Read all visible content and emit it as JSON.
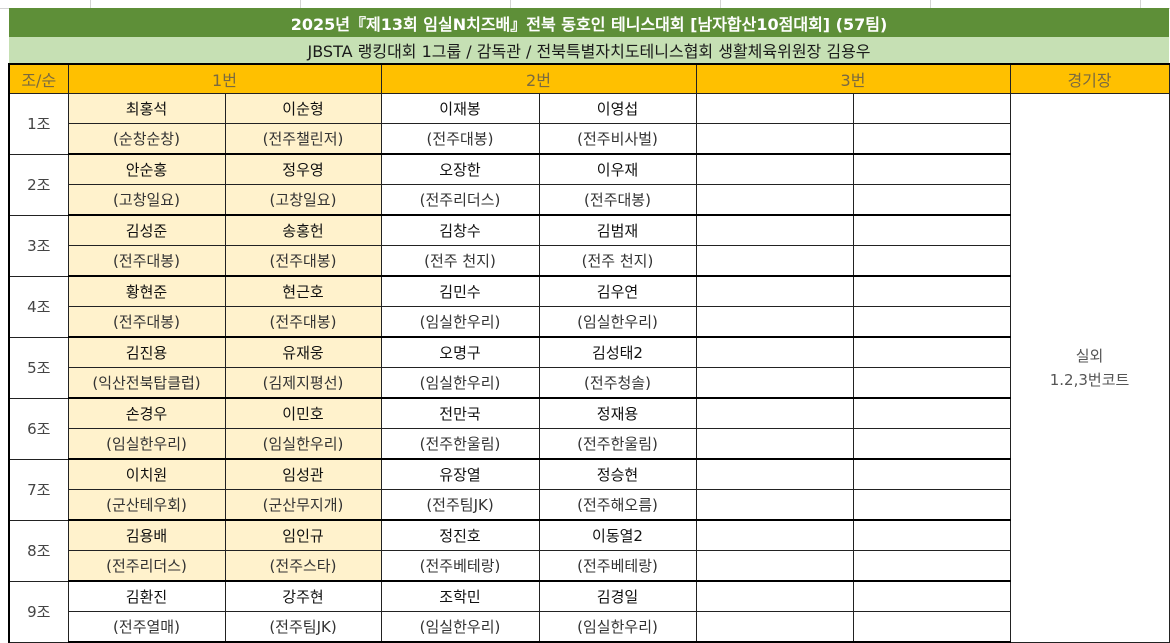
{
  "title": "2025년『제13회 임실N치즈배』전북 동호인 테니스대회 [남자합산10점대회] (57팀)",
  "subtitle": "JBSTA 랭킹대회 1그룹 / 감독관 / 전북특별자치도테니스협회 생활체육위원장 김용우",
  "headers": {
    "group": "조/순",
    "slot1": "1번",
    "slot2": "2번",
    "slot3": "3번",
    "venue": "경기장"
  },
  "venue": {
    "line1": "실외",
    "line2": "1.2,3번코트"
  },
  "colors": {
    "title_bg": "#5e8f38",
    "subtitle_bg": "#c6e0b4",
    "header_bg": "#ffc000",
    "slot1_highlight": "#fff2cc"
  },
  "groups": [
    {
      "label": "1조",
      "highlight": true,
      "names": [
        "최홍석",
        "이순형",
        "이재봉",
        "이영섭"
      ],
      "clubs": [
        "(순창순창)",
        "(전주챌린저)",
        "(전주대봉)",
        "(전주비사벌)"
      ]
    },
    {
      "label": "2조",
      "highlight": true,
      "names": [
        "안순홍",
        "정우영",
        "오장한",
        "이우재"
      ],
      "clubs": [
        "(고창일요)",
        "(고창일요)",
        "(전주리더스)",
        "(전주대봉)"
      ]
    },
    {
      "label": "3조",
      "highlight": true,
      "names": [
        "김성준",
        "송홍헌",
        "김창수",
        "김범재"
      ],
      "clubs": [
        "(전주대봉)",
        "(전주대봉)",
        "(전주 천지)",
        "(전주 천지)"
      ]
    },
    {
      "label": "4조",
      "highlight": true,
      "names": [
        "황현준",
        "현근호",
        "김민수",
        "김우연"
      ],
      "clubs": [
        "(전주대봉)",
        "(전주대봉)",
        "(임실한우리)",
        "(임실한우리)"
      ]
    },
    {
      "label": "5조",
      "highlight": true,
      "names": [
        "김진용",
        "유재웅",
        "오명구",
        "김성태2"
      ],
      "clubs": [
        "(익산전북탑클럽)",
        "(김제지평선)",
        "(임실한우리)",
        "(전주청솔)"
      ]
    },
    {
      "label": "6조",
      "highlight": true,
      "names": [
        "손경우",
        "이민호",
        "전만국",
        "정재용"
      ],
      "clubs": [
        "(임실한우리)",
        "(임실한우리)",
        "(전주한울림)",
        "(전주한울림)"
      ]
    },
    {
      "label": "7조",
      "highlight": true,
      "names": [
        "이치원",
        "임성관",
        "유장열",
        "정승현"
      ],
      "clubs": [
        "(군산테우회)",
        "(군산무지개)",
        "(전주팀JK)",
        "(전주해오름)"
      ]
    },
    {
      "label": "8조",
      "highlight": true,
      "names": [
        "김용배",
        "임인규",
        "정진호",
        "이동열2"
      ],
      "clubs": [
        "(전주리더스)",
        "(전주스타)",
        "(전주베테랑)",
        "(전주베테랑)"
      ]
    },
    {
      "label": "9조",
      "highlight": false,
      "names": [
        "김환진",
        "강주현",
        "조학민",
        "김경일"
      ],
      "clubs": [
        "(전주열매)",
        "(전주팀JK)",
        "(임실한우리)",
        "(임실한우리)"
      ]
    }
  ]
}
